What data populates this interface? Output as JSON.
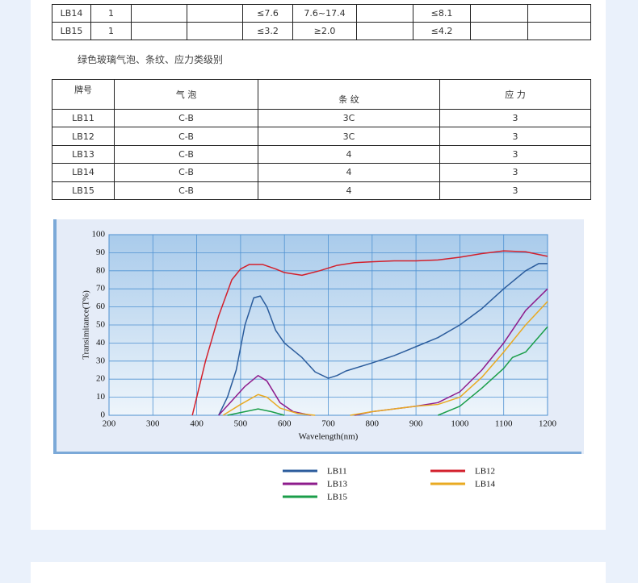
{
  "top_table": {
    "rows": [
      [
        "LB14",
        "1",
        null,
        null,
        "≤7.6",
        "7.6~17.4",
        null,
        "≤8.1",
        null,
        null
      ],
      [
        "LB15",
        "1",
        null,
        null,
        "≤3.2",
        "≥2.0",
        null,
        "≤4.2",
        null,
        null
      ]
    ]
  },
  "caption": "绿色玻璃气泡、条纹、应力类级别",
  "grade_table": {
    "header": [
      "牌号",
      "气 泡",
      "条 纹",
      "应 力"
    ],
    "rows": [
      [
        "LB11",
        "C-B",
        "3C",
        "3"
      ],
      [
        "LB12",
        "C-B",
        "3C",
        "3"
      ],
      [
        "LB13",
        "C-B",
        "4",
        "3"
      ],
      [
        "LB14",
        "C-B",
        "4",
        "3"
      ],
      [
        "LB15",
        "C-B",
        "4",
        "3"
      ]
    ]
  },
  "chart_data": {
    "type": "line",
    "x_label": "Wavelength(nm)",
    "y_label": "Transimitance(T%)",
    "xlim": [
      200,
      1200
    ],
    "ylim": [
      0,
      100
    ],
    "xticks": [
      200,
      300,
      400,
      500,
      600,
      700,
      800,
      900,
      1000,
      1100,
      1200
    ],
    "yticks": [
      0,
      10,
      20,
      30,
      40,
      50,
      60,
      70,
      80,
      90,
      100
    ],
    "grid": true,
    "series": [
      {
        "name": "LB11",
        "color": "#2b5c9c",
        "x": [
          450,
          470,
          490,
          510,
          530,
          545,
          560,
          580,
          600,
          640,
          670,
          700,
          720,
          740,
          800,
          850,
          900,
          950,
          1000,
          1050,
          1100,
          1150,
          1180,
          1200
        ],
        "values": [
          0,
          10,
          25,
          50,
          65,
          66,
          60,
          47,
          40,
          32,
          24,
          20.5,
          22,
          24.5,
          29,
          33,
          38,
          43,
          50,
          59,
          70,
          80,
          84,
          84
        ]
      },
      {
        "name": "LB12",
        "color": "#d3202c",
        "x": [
          390,
          420,
          450,
          480,
          500,
          520,
          550,
          580,
          600,
          640,
          680,
          720,
          760,
          800,
          850,
          900,
          950,
          1000,
          1050,
          1100,
          1150,
          1200
        ],
        "values": [
          0,
          30,
          55,
          75,
          81,
          83.5,
          83.5,
          81,
          79,
          77.5,
          80,
          83,
          84.5,
          85,
          85.5,
          85.5,
          86,
          87.5,
          89.5,
          91,
          90.5,
          88
        ]
      },
      {
        "name": "LB13",
        "color": "#8e1c8c",
        "x": [
          450,
          480,
          510,
          540,
          560,
          590,
          620,
          660,
          700,
          760,
          800,
          850,
          900,
          950,
          1000,
          1050,
          1100,
          1150,
          1200
        ],
        "values": [
          0,
          8,
          16,
          22,
          19,
          7,
          2,
          0,
          null,
          0,
          2,
          3.5,
          5,
          7,
          13,
          25,
          40,
          58,
          70
        ]
      },
      {
        "name": "LB14",
        "color": "#e9aa22",
        "x": [
          460,
          500,
          540,
          560,
          590,
          630,
          670,
          700,
          750,
          800,
          850,
          900,
          950,
          1000,
          1050,
          1100,
          1150,
          1200
        ],
        "values": [
          0,
          6,
          11.5,
          10,
          4,
          1,
          0,
          null,
          0,
          2,
          3.5,
          5,
          6,
          10,
          21,
          35,
          50,
          63
        ]
      },
      {
        "name": "LB15",
        "color": "#1b9e4a",
        "x": [
          470,
          500,
          540,
          570,
          600,
          800,
          950,
          1000,
          1050,
          1100,
          1120,
          1150,
          1200
        ],
        "values": [
          0,
          1.5,
          3.5,
          2,
          0,
          null,
          0,
          5,
          15,
          26,
          32,
          35,
          49
        ]
      }
    ]
  }
}
